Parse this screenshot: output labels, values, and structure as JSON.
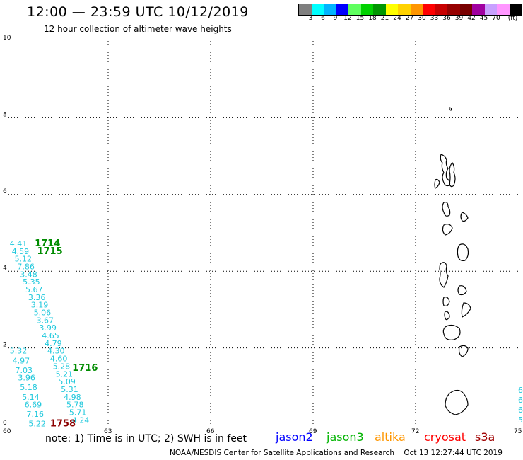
{
  "title": "12:00 — 23:59 UTC 10/12/2019",
  "subtitle": "12 hour collection of altimeter wave heights",
  "legend": {
    "colors": [
      "#7f7f7f",
      "#00ffff",
      "#00b4ff",
      "#0000ff",
      "#5fff5f",
      "#00d200",
      "#009600",
      "#ffff00",
      "#ffd200",
      "#ff9600",
      "#ff0000",
      "#c80000",
      "#960000",
      "#780000",
      "#a000a0",
      "#c8a0ff",
      "#ff96ff",
      "#000000"
    ],
    "labels": [
      "3",
      "6",
      "9",
      "12",
      "15",
      "18",
      "21",
      "24",
      "27",
      "30",
      "33",
      "36",
      "39",
      "42",
      "45",
      "70",
      "(ft)"
    ]
  },
  "axes": {
    "x_ticks": [
      "60",
      "63",
      "66",
      "69",
      "72",
      "75"
    ],
    "y_ticks": [
      "0",
      "2",
      "4",
      "6",
      "8",
      "10"
    ]
  },
  "wave_heights": [
    {
      "v": "4.41",
      "lon": 60.12,
      "lat": 4.65
    },
    {
      "v": "4.59",
      "lon": 60.18,
      "lat": 4.45
    },
    {
      "v": "5.12",
      "lon": 60.26,
      "lat": 4.25
    },
    {
      "v": "7.86",
      "lon": 60.34,
      "lat": 4.05
    },
    {
      "v": "3.48",
      "lon": 60.42,
      "lat": 3.85
    },
    {
      "v": "5.35",
      "lon": 60.5,
      "lat": 3.65
    },
    {
      "v": "5.67",
      "lon": 60.58,
      "lat": 3.45
    },
    {
      "v": "3.36",
      "lon": 60.66,
      "lat": 3.25
    },
    {
      "v": "3.19",
      "lon": 60.74,
      "lat": 3.05
    },
    {
      "v": "5.06",
      "lon": 60.82,
      "lat": 2.85
    },
    {
      "v": "3.67",
      "lon": 60.9,
      "lat": 2.65
    },
    {
      "v": "3.99",
      "lon": 60.98,
      "lat": 2.45
    },
    {
      "v": "4.65",
      "lon": 61.06,
      "lat": 2.25
    },
    {
      "v": "4.79",
      "lon": 61.14,
      "lat": 2.05
    },
    {
      "v": "4.30",
      "lon": 61.22,
      "lat": 1.85
    },
    {
      "v": "4.60",
      "lon": 61.3,
      "lat": 1.65
    },
    {
      "v": "5.28",
      "lon": 61.38,
      "lat": 1.45
    },
    {
      "v": "5.21",
      "lon": 61.46,
      "lat": 1.25
    },
    {
      "v": "5.09",
      "lon": 61.54,
      "lat": 1.05
    },
    {
      "v": "5.31",
      "lon": 61.62,
      "lat": 0.85
    },
    {
      "v": "4.98",
      "lon": 61.7,
      "lat": 0.65
    },
    {
      "v": "5.78",
      "lon": 61.78,
      "lat": 0.45
    },
    {
      "v": "5.71",
      "lon": 61.86,
      "lat": 0.25
    },
    {
      "v": "4.24",
      "lon": 61.94,
      "lat": 0.05
    },
    {
      "v": "5.32",
      "lon": 60.12,
      "lat": 1.85
    },
    {
      "v": "4.97",
      "lon": 60.2,
      "lat": 1.6
    },
    {
      "v": "7.03",
      "lon": 60.28,
      "lat": 1.35
    },
    {
      "v": "3.96",
      "lon": 60.36,
      "lat": 1.15
    },
    {
      "v": "5.18",
      "lon": 60.42,
      "lat": 0.9
    },
    {
      "v": "5.14",
      "lon": 60.48,
      "lat": 0.65
    },
    {
      "v": "6.69",
      "lon": 60.55,
      "lat": 0.45
    },
    {
      "v": "7.16",
      "lon": 60.61,
      "lat": 0.2
    },
    {
      "v": "5.22",
      "lon": 60.67,
      "lat": -0.05
    }
  ],
  "pass_labels": [
    {
      "t": "1714",
      "lon": 60.85,
      "lat": 4.65,
      "color": "#008c00"
    },
    {
      "t": "1715",
      "lon": 60.92,
      "lat": 4.45,
      "color": "#008c00"
    },
    {
      "t": "1716",
      "lon": 61.95,
      "lat": 1.4,
      "color": "#008c00"
    },
    {
      "t": "1758",
      "lon": 61.3,
      "lat": -0.05,
      "color": "#8c0000"
    }
  ],
  "edge_labels": [
    "6",
    "6",
    "6",
    "5."
  ],
  "note": "note: 1) Time is in UTC; 2) SWH is in feet",
  "satellites": [
    {
      "name": "jason2",
      "color": "#0000ff"
    },
    {
      "name": "jason3",
      "color": "#00b400"
    },
    {
      "name": "altika",
      "color": "#ff9600"
    },
    {
      "name": "cryosat",
      "color": "#ff0000"
    },
    {
      "name": "s3a",
      "color": "#a00000"
    }
  ],
  "credit": "NOAA/NESDIS Center for Satellite Applications and Research    Oct 13 12:27:44 UTC 2019"
}
